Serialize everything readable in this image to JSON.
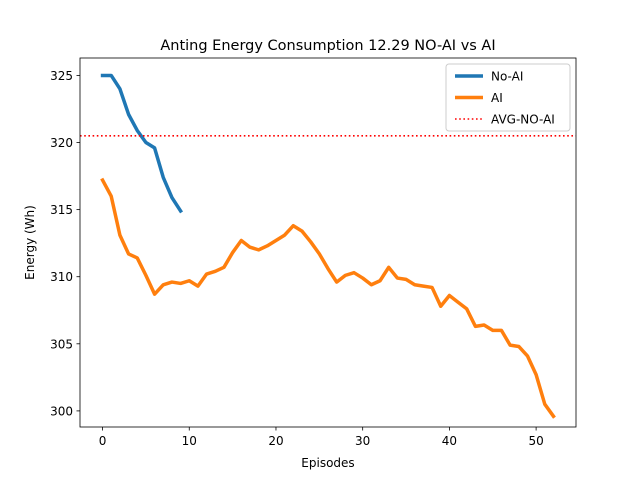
{
  "chart_data": {
    "type": "line",
    "title": "Anting Energy Consumption 12.29 NO-AI vs AI",
    "xlabel": "Episodes",
    "ylabel": "Energy (Wh)",
    "xlim": [
      -2.6,
      54.6
    ],
    "ylim": [
      298.8,
      326.3
    ],
    "xticks": [
      0,
      10,
      20,
      30,
      40,
      50
    ],
    "yticks": [
      300,
      305,
      310,
      315,
      320,
      325
    ],
    "grid": false,
    "legend_position": "top-right",
    "series": [
      {
        "name": "No-AI",
        "color": "#1f77b4",
        "style": "solid",
        "x": [
          0,
          1,
          2,
          3,
          4,
          5,
          6,
          7,
          8,
          9
        ],
        "y": [
          325.0,
          325.0,
          324.0,
          322.1,
          320.9,
          320.0,
          319.6,
          317.4,
          315.9,
          314.9
        ]
      },
      {
        "name": "AI",
        "color": "#ff7f0e",
        "style": "solid",
        "x": [
          0,
          1,
          2,
          3,
          4,
          5,
          6,
          7,
          8,
          9,
          10,
          11,
          12,
          13,
          14,
          15,
          16,
          17,
          18,
          19,
          20,
          21,
          22,
          23,
          24,
          25,
          26,
          27,
          28,
          29,
          30,
          31,
          32,
          33,
          34,
          35,
          36,
          37,
          38,
          39,
          40,
          41,
          42,
          43,
          44,
          45,
          46,
          47,
          48,
          49,
          50,
          51,
          52
        ],
        "y": [
          317.2,
          316.0,
          313.1,
          311.7,
          311.4,
          310.1,
          308.7,
          309.4,
          309.6,
          309.5,
          309.7,
          309.3,
          310.2,
          310.4,
          310.7,
          311.8,
          312.7,
          312.2,
          312.0,
          312.3,
          312.7,
          313.1,
          313.8,
          313.4,
          312.6,
          311.7,
          310.6,
          309.6,
          310.1,
          310.3,
          309.9,
          309.4,
          309.7,
          310.7,
          309.9,
          309.8,
          309.4,
          309.3,
          309.2,
          307.8,
          308.6,
          308.1,
          307.6,
          306.3,
          306.4,
          306.0,
          306.0,
          304.9,
          304.8,
          304.1,
          302.7,
          300.5,
          299.6
        ]
      },
      {
        "name": "AVG-NO-AI",
        "color": "#ff0000",
        "style": "dotted",
        "hline": 320.5
      }
    ]
  }
}
